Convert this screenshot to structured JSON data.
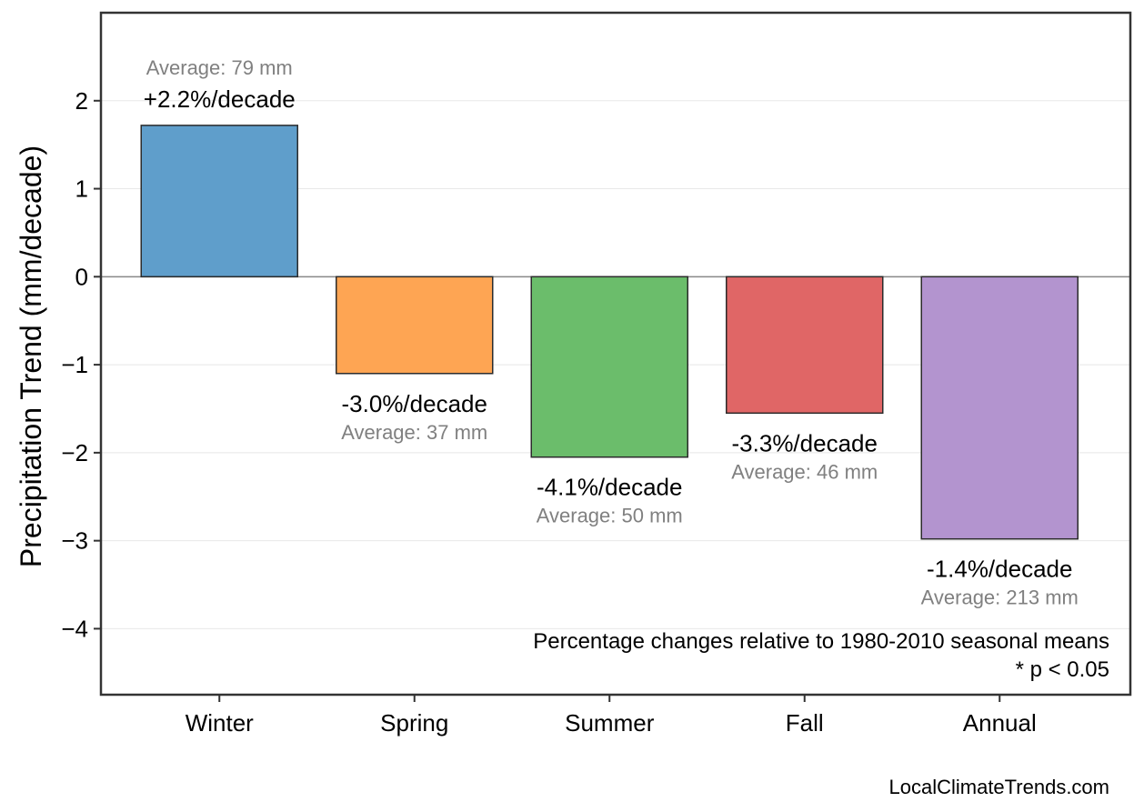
{
  "chart_data": {
    "type": "bar",
    "categories": [
      "Winter",
      "Spring",
      "Summer",
      "Fall",
      "Annual"
    ],
    "values": [
      1.72,
      -1.1,
      -2.05,
      -1.55,
      -2.98
    ],
    "colors": [
      "#5f9ecb",
      "#fea553",
      "#6bbd6b",
      "#e06666",
      "#b394cf"
    ],
    "trend_labels": [
      "+2.2%/decade",
      "-3.0%/decade",
      "-4.1%/decade",
      "-3.3%/decade",
      "-1.4%/decade"
    ],
    "average_labels": [
      "Average: 79 mm",
      "Average: 37 mm",
      "Average: 50 mm",
      "Average: 46 mm",
      "Average: 213 mm"
    ],
    "ylabel": "Precipitation Trend (mm/decade)",
    "xlabel": "",
    "ylim": [
      -4.75,
      3.0
    ],
    "yticks": [
      2,
      1,
      0,
      -1,
      -2,
      -3,
      -4
    ],
    "ytick_labels": [
      "2",
      "1",
      "0",
      "−1",
      "−2",
      "−3",
      "−4"
    ],
    "grid": true,
    "notes": [
      "Percentage changes relative to 1980-2010 seasonal means",
      "* p < 0.05"
    ],
    "source": "LocalClimateTrends.com"
  }
}
